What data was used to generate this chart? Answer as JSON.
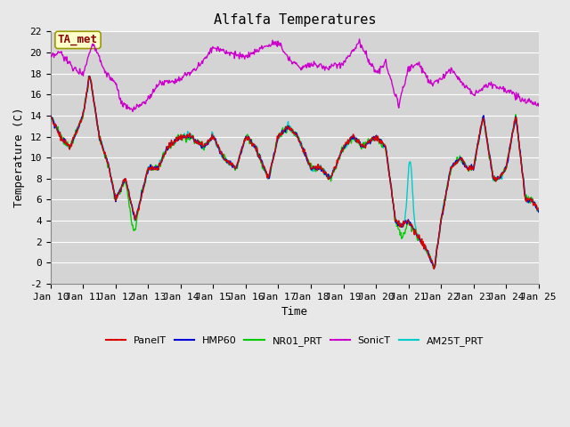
{
  "title": "Alfalfa Temperatures",
  "xlabel": "Time",
  "ylabel": "Temperature (C)",
  "ylim": [
    -2,
    22
  ],
  "xlim": [
    0,
    15
  ],
  "annotation_text": "TA_met",
  "fig_facecolor": "#e8e8e8",
  "ax_facecolor": "#d4d4d4",
  "series_colors": {
    "PanelT": "#dd0000",
    "HMP60": "#0000dd",
    "NR01_PRT": "#00cc00",
    "SonicT": "#cc00cc",
    "AM25T_PRT": "#00cccc"
  },
  "tick_labels": [
    "Jan 10",
    "Jan 11",
    "Jan 12",
    "Jan 13",
    "Jan 14",
    "Jan 15",
    "Jan 16",
    "Jan 17",
    "Jan 18",
    "Jan 19",
    "Jan 20",
    "Jan 21",
    "Jan 22",
    "Jan 23",
    "Jan 24",
    "Jan 25"
  ],
  "yticks": [
    -2,
    0,
    2,
    4,
    6,
    8,
    10,
    12,
    14,
    16,
    18,
    20,
    22
  ],
  "figsize": [
    6.4,
    4.8
  ],
  "dpi": 100,
  "title_fontsize": 11,
  "label_fontsize": 9,
  "tick_fontsize": 8
}
